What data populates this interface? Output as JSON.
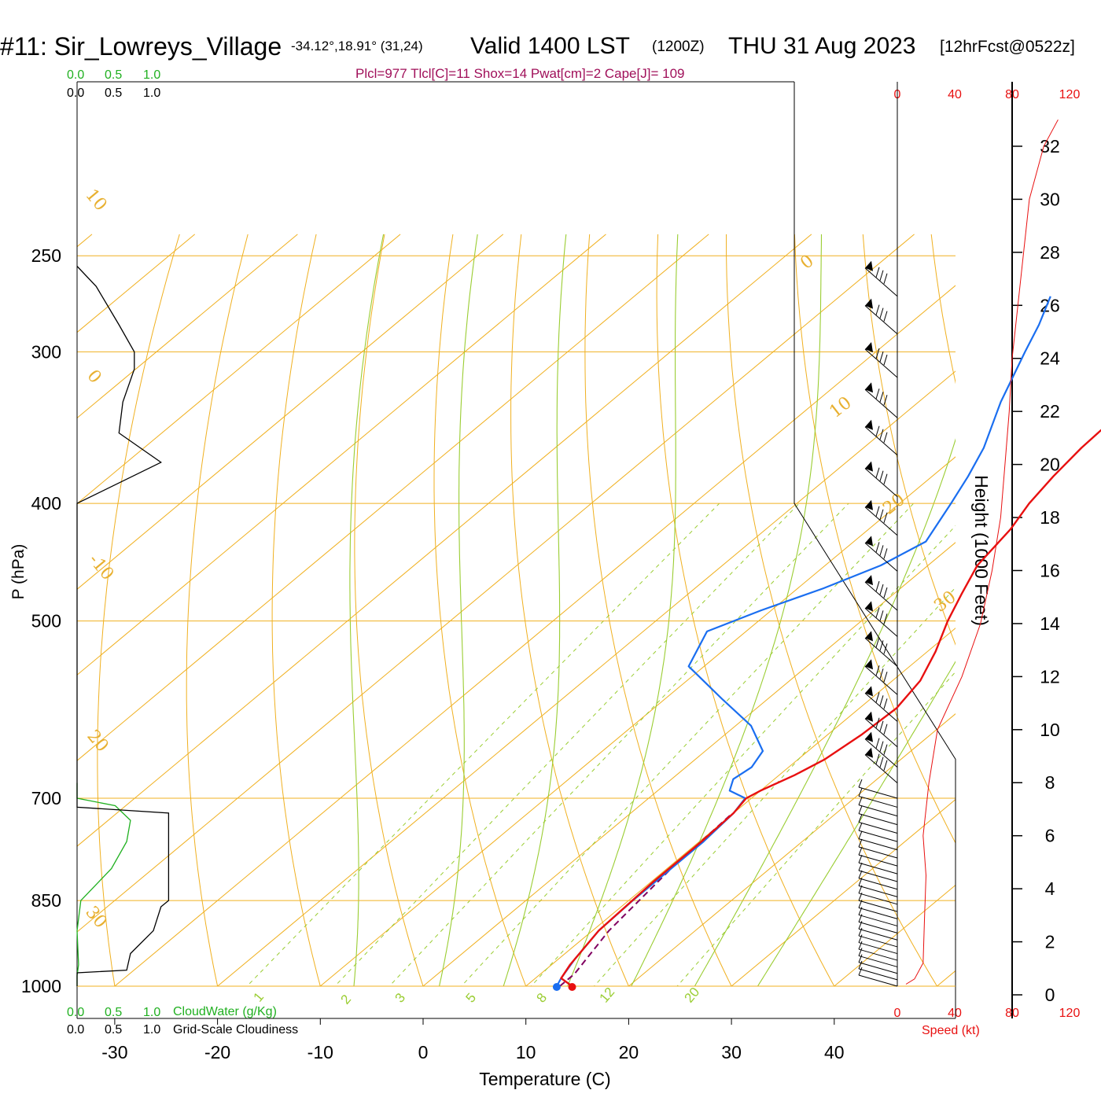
{
  "header": {
    "station": "#11: Sir_Lowreys_Village",
    "coords": "-34.12°,18.91° (31,24)",
    "valid": "Valid 1400 LST",
    "zulu": "(1200Z)",
    "date": "THU 31 Aug 2023",
    "forecast": "[12hrFcst@0522z]"
  },
  "parcel_line": "Plcl=977 Tlcl[C]=11 Shox=14 Pwat[cm]=2 Cape[J]= 109",
  "cloud_scale": {
    "green_ticks": [
      "0.0",
      "0.5",
      "1.0"
    ],
    "black_ticks": [
      "0.0",
      "0.5",
      "1.0"
    ],
    "cloudwater_label": "CloudWater (g/Kg)",
    "cloudiness_label": "Grid-Scale Cloudiness"
  },
  "wind_scale": {
    "ticks": [
      "0",
      "40",
      "80",
      "120"
    ],
    "label": "Speed (kt)"
  },
  "colors": {
    "temperature": "#e81010",
    "dewpoint": "#1a6ef0",
    "parcel": "#800060",
    "isotherm": "#f0b020",
    "mixing_ratio": "#9acd32",
    "cloudwater": "#20b020",
    "wind_speed": "#e81010",
    "title_accent": "#a0105a"
  },
  "chart_data": {
    "type": "skew-t",
    "xlabel": "Temperature (C)",
    "ylabel": "P (hPa)",
    "right_axis_label": "Height (1000 Feet)",
    "x_ticks": [
      -30,
      -20,
      -10,
      0,
      10,
      20,
      30,
      40
    ],
    "pressure_ticks": [
      250,
      300,
      400,
      500,
      700,
      850,
      1000
    ],
    "height_ticks": [
      0,
      2,
      4,
      6,
      8,
      10,
      12,
      14,
      16,
      18,
      20,
      22,
      24,
      26,
      28,
      30,
      32
    ],
    "isotherm_labels": [
      "0",
      "10",
      "20",
      "30",
      "10",
      "0",
      "-10",
      "20",
      "30"
    ],
    "mixing_ratio_labels": [
      "1",
      "2",
      "3",
      "5",
      "8",
      "12",
      "20"
    ],
    "temperature_profile": [
      {
        "p": 1000,
        "t": 14.5
      },
      {
        "p": 985,
        "t": 12.5
      },
      {
        "p": 960,
        "t": 11.8
      },
      {
        "p": 900,
        "t": 10.6
      },
      {
        "p": 820,
        "t": 10.2
      },
      {
        "p": 760,
        "t": 10.2
      },
      {
        "p": 720,
        "t": 10.0
      },
      {
        "p": 700,
        "t": 9.5
      },
      {
        "p": 690,
        "t": 10.0
      },
      {
        "p": 670,
        "t": 11.5
      },
      {
        "p": 650,
        "t": 12.6
      },
      {
        "p": 620,
        "t": 13.3
      },
      {
        "p": 590,
        "t": 13.6
      },
      {
        "p": 560,
        "t": 12.7
      },
      {
        "p": 530,
        "t": 10.8
      },
      {
        "p": 500,
        "t": 8.4
      },
      {
        "p": 475,
        "t": 6.6
      },
      {
        "p": 450,
        "t": 4.8
      },
      {
        "p": 420,
        "t": 3.8
      },
      {
        "p": 400,
        "t": 2.6
      },
      {
        "p": 380,
        "t": 1.8
      },
      {
        "p": 360,
        "t": 1.2
      },
      {
        "p": 330,
        "t": 0.8
      },
      {
        "p": 300,
        "t": 0.5
      },
      {
        "p": 285,
        "t": 0.0
      },
      {
        "p": 270,
        "t": -0.8
      }
    ],
    "dewpoint_profile": [
      {
        "p": 1000,
        "td": 13.0
      },
      {
        "p": 985,
        "td": 12.5
      },
      {
        "p": 950,
        "td": 11.6
      },
      {
        "p": 900,
        "td": 10.6
      },
      {
        "p": 850,
        "td": 10.4
      },
      {
        "p": 800,
        "td": 10.4
      },
      {
        "p": 760,
        "td": 10.4
      },
      {
        "p": 720,
        "td": 10.0
      },
      {
        "p": 700,
        "td": 9.4
      },
      {
        "p": 690,
        "td": 7.0
      },
      {
        "p": 675,
        "td": 6.0
      },
      {
        "p": 660,
        "td": 6.4
      },
      {
        "p": 640,
        "td": 5.6
      },
      {
        "p": 610,
        "td": 1.5
      },
      {
        "p": 580,
        "td": -4.4
      },
      {
        "p": 545,
        "td": -11.5
      },
      {
        "p": 510,
        "td": -13.8
      },
      {
        "p": 490,
        "td": -11.0
      },
      {
        "p": 470,
        "td": -7.5
      },
      {
        "p": 450,
        "td": -4.6
      },
      {
        "p": 430,
        "td": -3.0
      },
      {
        "p": 400,
        "td": -5.0
      },
      {
        "p": 380,
        "td": -6.5
      },
      {
        "p": 360,
        "td": -8.3
      },
      {
        "p": 330,
        "td": -12.0
      },
      {
        "p": 300,
        "td": -15.5
      },
      {
        "p": 285,
        "td": -17.3
      },
      {
        "p": 270,
        "td": -19.5
      }
    ],
    "parcel_profile": [
      {
        "p": 1000,
        "t": 13.3
      },
      {
        "p": 977,
        "t": 13.3
      },
      {
        "p": 900,
        "t": 11.6
      },
      {
        "p": 800,
        "t": 10.4
      },
      {
        "p": 720,
        "t": 9.9
      }
    ],
    "surface": {
      "p": 1000,
      "t": 14.5,
      "td": 13.0
    },
    "cloud_water_profile": [
      {
        "p": 1000,
        "v": 0.0
      },
      {
        "p": 980,
        "v": 0.0
      },
      {
        "p": 960,
        "v": 0.02
      },
      {
        "p": 900,
        "v": 0.0
      },
      {
        "p": 850,
        "v": 0.05
      },
      {
        "p": 800,
        "v": 0.45
      },
      {
        "p": 760,
        "v": 0.65
      },
      {
        "p": 730,
        "v": 0.7
      },
      {
        "p": 710,
        "v": 0.5
      },
      {
        "p": 700,
        "v": 0.0
      },
      {
        "p": 680,
        "v": 0.0
      }
    ],
    "cloudiness_profile": [
      {
        "p": 1000,
        "v": 0.0
      },
      {
        "p": 975,
        "v": 0.0
      },
      {
        "p": 970,
        "v": 0.65
      },
      {
        "p": 940,
        "v": 0.7
      },
      {
        "p": 900,
        "v": 1.0
      },
      {
        "p": 860,
        "v": 1.1
      },
      {
        "p": 850,
        "v": 1.2
      },
      {
        "p": 720,
        "v": 1.2
      },
      {
        "p": 712,
        "v": 0.0
      },
      {
        "p": 690,
        "v": 0.0
      },
      {
        "p": 400,
        "v": 0.0
      },
      {
        "p": 370,
        "v": 1.1
      },
      {
        "p": 350,
        "v": 0.55
      },
      {
        "p": 330,
        "v": 0.6
      },
      {
        "p": 310,
        "v": 0.75
      },
      {
        "p": 300,
        "v": 0.75
      },
      {
        "p": 285,
        "v": 0.55
      },
      {
        "p": 265,
        "v": 0.25
      },
      {
        "p": 255,
        "v": 0.0
      }
    ],
    "wind_speed_profile": [
      {
        "h": 0.4,
        "v": 6
      },
      {
        "h": 0.6,
        "v": 12
      },
      {
        "h": 1.2,
        "v": 18
      },
      {
        "h": 3.0,
        "v": 19
      },
      {
        "h": 4.5,
        "v": 20
      },
      {
        "h": 6.0,
        "v": 18
      },
      {
        "h": 8.0,
        "v": 22
      },
      {
        "h": 10.0,
        "v": 28
      },
      {
        "h": 12.0,
        "v": 45
      },
      {
        "h": 14.0,
        "v": 58
      },
      {
        "h": 16.0,
        "v": 66
      },
      {
        "h": 18.0,
        "v": 72
      },
      {
        "h": 20.0,
        "v": 75
      },
      {
        "h": 22.0,
        "v": 78
      },
      {
        "h": 24.0,
        "v": 80
      },
      {
        "h": 26.0,
        "v": 84
      },
      {
        "h": 28.0,
        "v": 88
      },
      {
        "h": 30.0,
        "v": 92
      },
      {
        "h": 32.0,
        "v": 102
      },
      {
        "h": 33.0,
        "v": 112
      }
    ],
    "grid": true
  }
}
